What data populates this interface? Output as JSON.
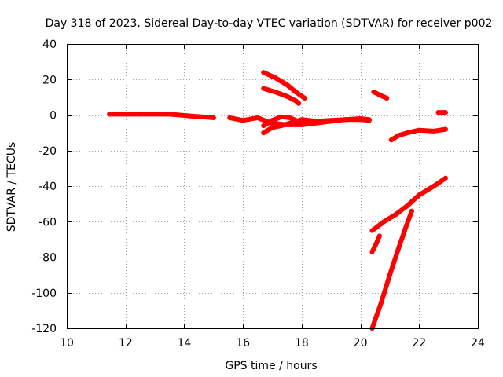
{
  "chart_data": {
    "type": "line",
    "title": "Day 318 of 2023, Sidereal Day-to-day VTEC variation (SDTVAR) for receiver p002",
    "xlabel": "GPS time / hours",
    "ylabel": "SDTVAR / TECUs",
    "xlim": [
      10,
      24
    ],
    "ylim": [
      -120,
      40
    ],
    "xticks": [
      "10",
      "12",
      "14",
      "16",
      "18",
      "20",
      "22",
      "24"
    ],
    "yticks": [
      "40",
      "20",
      "0",
      "-20",
      "-40",
      "-60",
      "-80",
      "-100",
      "-120"
    ],
    "grid": true,
    "legend": "none",
    "color": "#ff0000",
    "series": [
      {
        "points": [
          [
            11.45,
            0.5
          ],
          [
            12.5,
            0.5
          ],
          [
            13.5,
            0.5
          ],
          [
            14.2,
            -0.5
          ],
          [
            15.0,
            -1.5
          ]
        ]
      },
      {
        "points": [
          [
            15.55,
            -1.5
          ],
          [
            16.0,
            -3.0
          ],
          [
            16.5,
            -1.5
          ],
          [
            16.95,
            -4.5
          ],
          [
            17.5,
            -5.5
          ],
          [
            18.0,
            -5.5
          ],
          [
            18.5,
            -4.5
          ],
          [
            19.0,
            -3.5
          ],
          [
            19.5,
            -2.5
          ],
          [
            20.0,
            -2.5
          ],
          [
            20.3,
            -3.0
          ]
        ]
      },
      {
        "points": [
          [
            16.7,
            -10.0
          ],
          [
            17.0,
            -7.0
          ],
          [
            17.3,
            -6.0
          ],
          [
            17.6,
            -4.5
          ],
          [
            18.0,
            -2.5
          ],
          [
            18.5,
            -3.5
          ],
          [
            19.0,
            -3.0
          ],
          [
            19.5,
            -2.5
          ],
          [
            20.0,
            -2.0
          ],
          [
            20.3,
            -2.5
          ]
        ]
      },
      {
        "points": [
          [
            16.7,
            -6.0
          ],
          [
            17.0,
            -3.0
          ],
          [
            17.3,
            -1.0
          ],
          [
            17.6,
            -1.5
          ],
          [
            18.0,
            -4.5
          ],
          [
            18.4,
            -5.0
          ]
        ]
      },
      {
        "points": [
          [
            16.7,
            24.0
          ],
          [
            17.1,
            21.0
          ],
          [
            17.5,
            17.0
          ],
          [
            17.8,
            13.0
          ],
          [
            18.1,
            9.5
          ]
        ]
      },
      {
        "points": [
          [
            16.7,
            15.0
          ],
          [
            17.1,
            13.0
          ],
          [
            17.5,
            10.5
          ],
          [
            17.8,
            8.0
          ],
          [
            17.9,
            6.5
          ]
        ]
      },
      {
        "points": [
          [
            20.45,
            13.0
          ],
          [
            20.7,
            11.0
          ],
          [
            20.9,
            9.5
          ]
        ]
      },
      {
        "points": [
          [
            21.05,
            -14.0
          ],
          [
            21.3,
            -11.5
          ],
          [
            21.6,
            -10.0
          ],
          [
            22.0,
            -8.5
          ],
          [
            22.5,
            -9.0
          ],
          [
            22.9,
            -8.0
          ]
        ]
      },
      {
        "points": [
          [
            22.65,
            1.5
          ],
          [
            22.9,
            1.5
          ]
        ]
      },
      {
        "points": [
          [
            20.4,
            -65.0
          ],
          [
            20.8,
            -60.0
          ],
          [
            21.2,
            -56.0
          ],
          [
            21.6,
            -51.0
          ],
          [
            22.0,
            -45.0
          ],
          [
            22.5,
            -40.0
          ],
          [
            22.9,
            -35.5
          ]
        ]
      },
      {
        "points": [
          [
            20.4,
            -77.0
          ],
          [
            20.55,
            -72.0
          ],
          [
            20.65,
            -68.0
          ]
        ]
      },
      {
        "points": [
          [
            20.4,
            -120.0
          ],
          [
            20.7,
            -106.0
          ],
          [
            21.0,
            -90.0
          ],
          [
            21.3,
            -75.0
          ],
          [
            21.55,
            -63.0
          ],
          [
            21.75,
            -54.0
          ]
        ]
      }
    ]
  }
}
